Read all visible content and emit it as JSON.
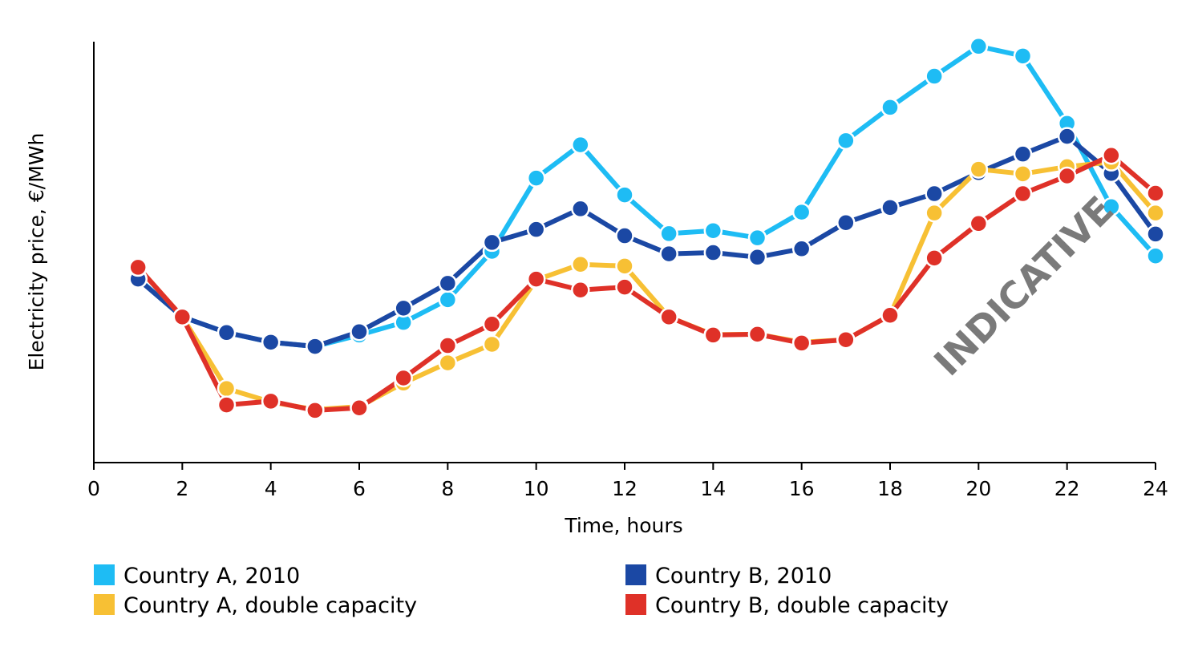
{
  "chart_data": {
    "type": "line",
    "title": "",
    "xlabel": "Time, hours",
    "ylabel": "Electricity price, €/MWh",
    "xlim": [
      0,
      24
    ],
    "ylim": [
      0,
      100
    ],
    "xticks": [
      "0",
      "2",
      "4",
      "6",
      "8",
      "10",
      "12",
      "14",
      "16",
      "18",
      "20",
      "22",
      "24"
    ],
    "yticks_shown": false,
    "grid": false,
    "legend_position": "bottom",
    "watermark": "INDICATIVE",
    "x": [
      1,
      2,
      3,
      4,
      5,
      6,
      7,
      8,
      9,
      10,
      11,
      12,
      13,
      14,
      15,
      16,
      17,
      18,
      19,
      20,
      21,
      22,
      23,
      24
    ],
    "series": [
      {
        "name": "Country A, 2010",
        "color": "#1ebcf4",
        "values": [
          43.7,
          34.6,
          30.9,
          28.6,
          27.6,
          30.3,
          33.3,
          38.7,
          50.2,
          67.6,
          75.5,
          63.6,
          54.4,
          55.1,
          53.4,
          59.5,
          76.5,
          84.4,
          91.8,
          98.9,
          96.6,
          80.6,
          60.8,
          49.1
        ]
      },
      {
        "name": "Country B, 2010",
        "color": "#1b48a4",
        "values": [
          43.6,
          34.6,
          30.9,
          28.6,
          27.6,
          31.1,
          36.7,
          42.6,
          52.3,
          55.4,
          60.3,
          53.9,
          49.6,
          49.9,
          48.8,
          50.8,
          57.0,
          60.6,
          63.9,
          68.9,
          73.3,
          77.5,
          68.7,
          54.3
        ]
      },
      {
        "name": "Country A, double capacity",
        "color": "#f7c034",
        "values": [
          46.4,
          34.6,
          17.6,
          14.4,
          12.6,
          13.3,
          18.9,
          23.7,
          28.1,
          43.4,
          47.1,
          46.7,
          34.6,
          30.4,
          30.5,
          28.6,
          29.2,
          35.0,
          59.3,
          69.7,
          68.6,
          70.3,
          71.4,
          59.3
        ]
      },
      {
        "name": "Country B, double capacity",
        "color": "#df3128",
        "values": [
          46.4,
          34.6,
          13.7,
          14.6,
          12.4,
          13.0,
          20.1,
          27.8,
          32.9,
          43.6,
          41.0,
          41.7,
          34.6,
          30.3,
          30.5,
          28.4,
          29.2,
          35.0,
          48.6,
          56.8,
          63.9,
          68.1,
          73.0,
          64.0
        ]
      }
    ]
  }
}
